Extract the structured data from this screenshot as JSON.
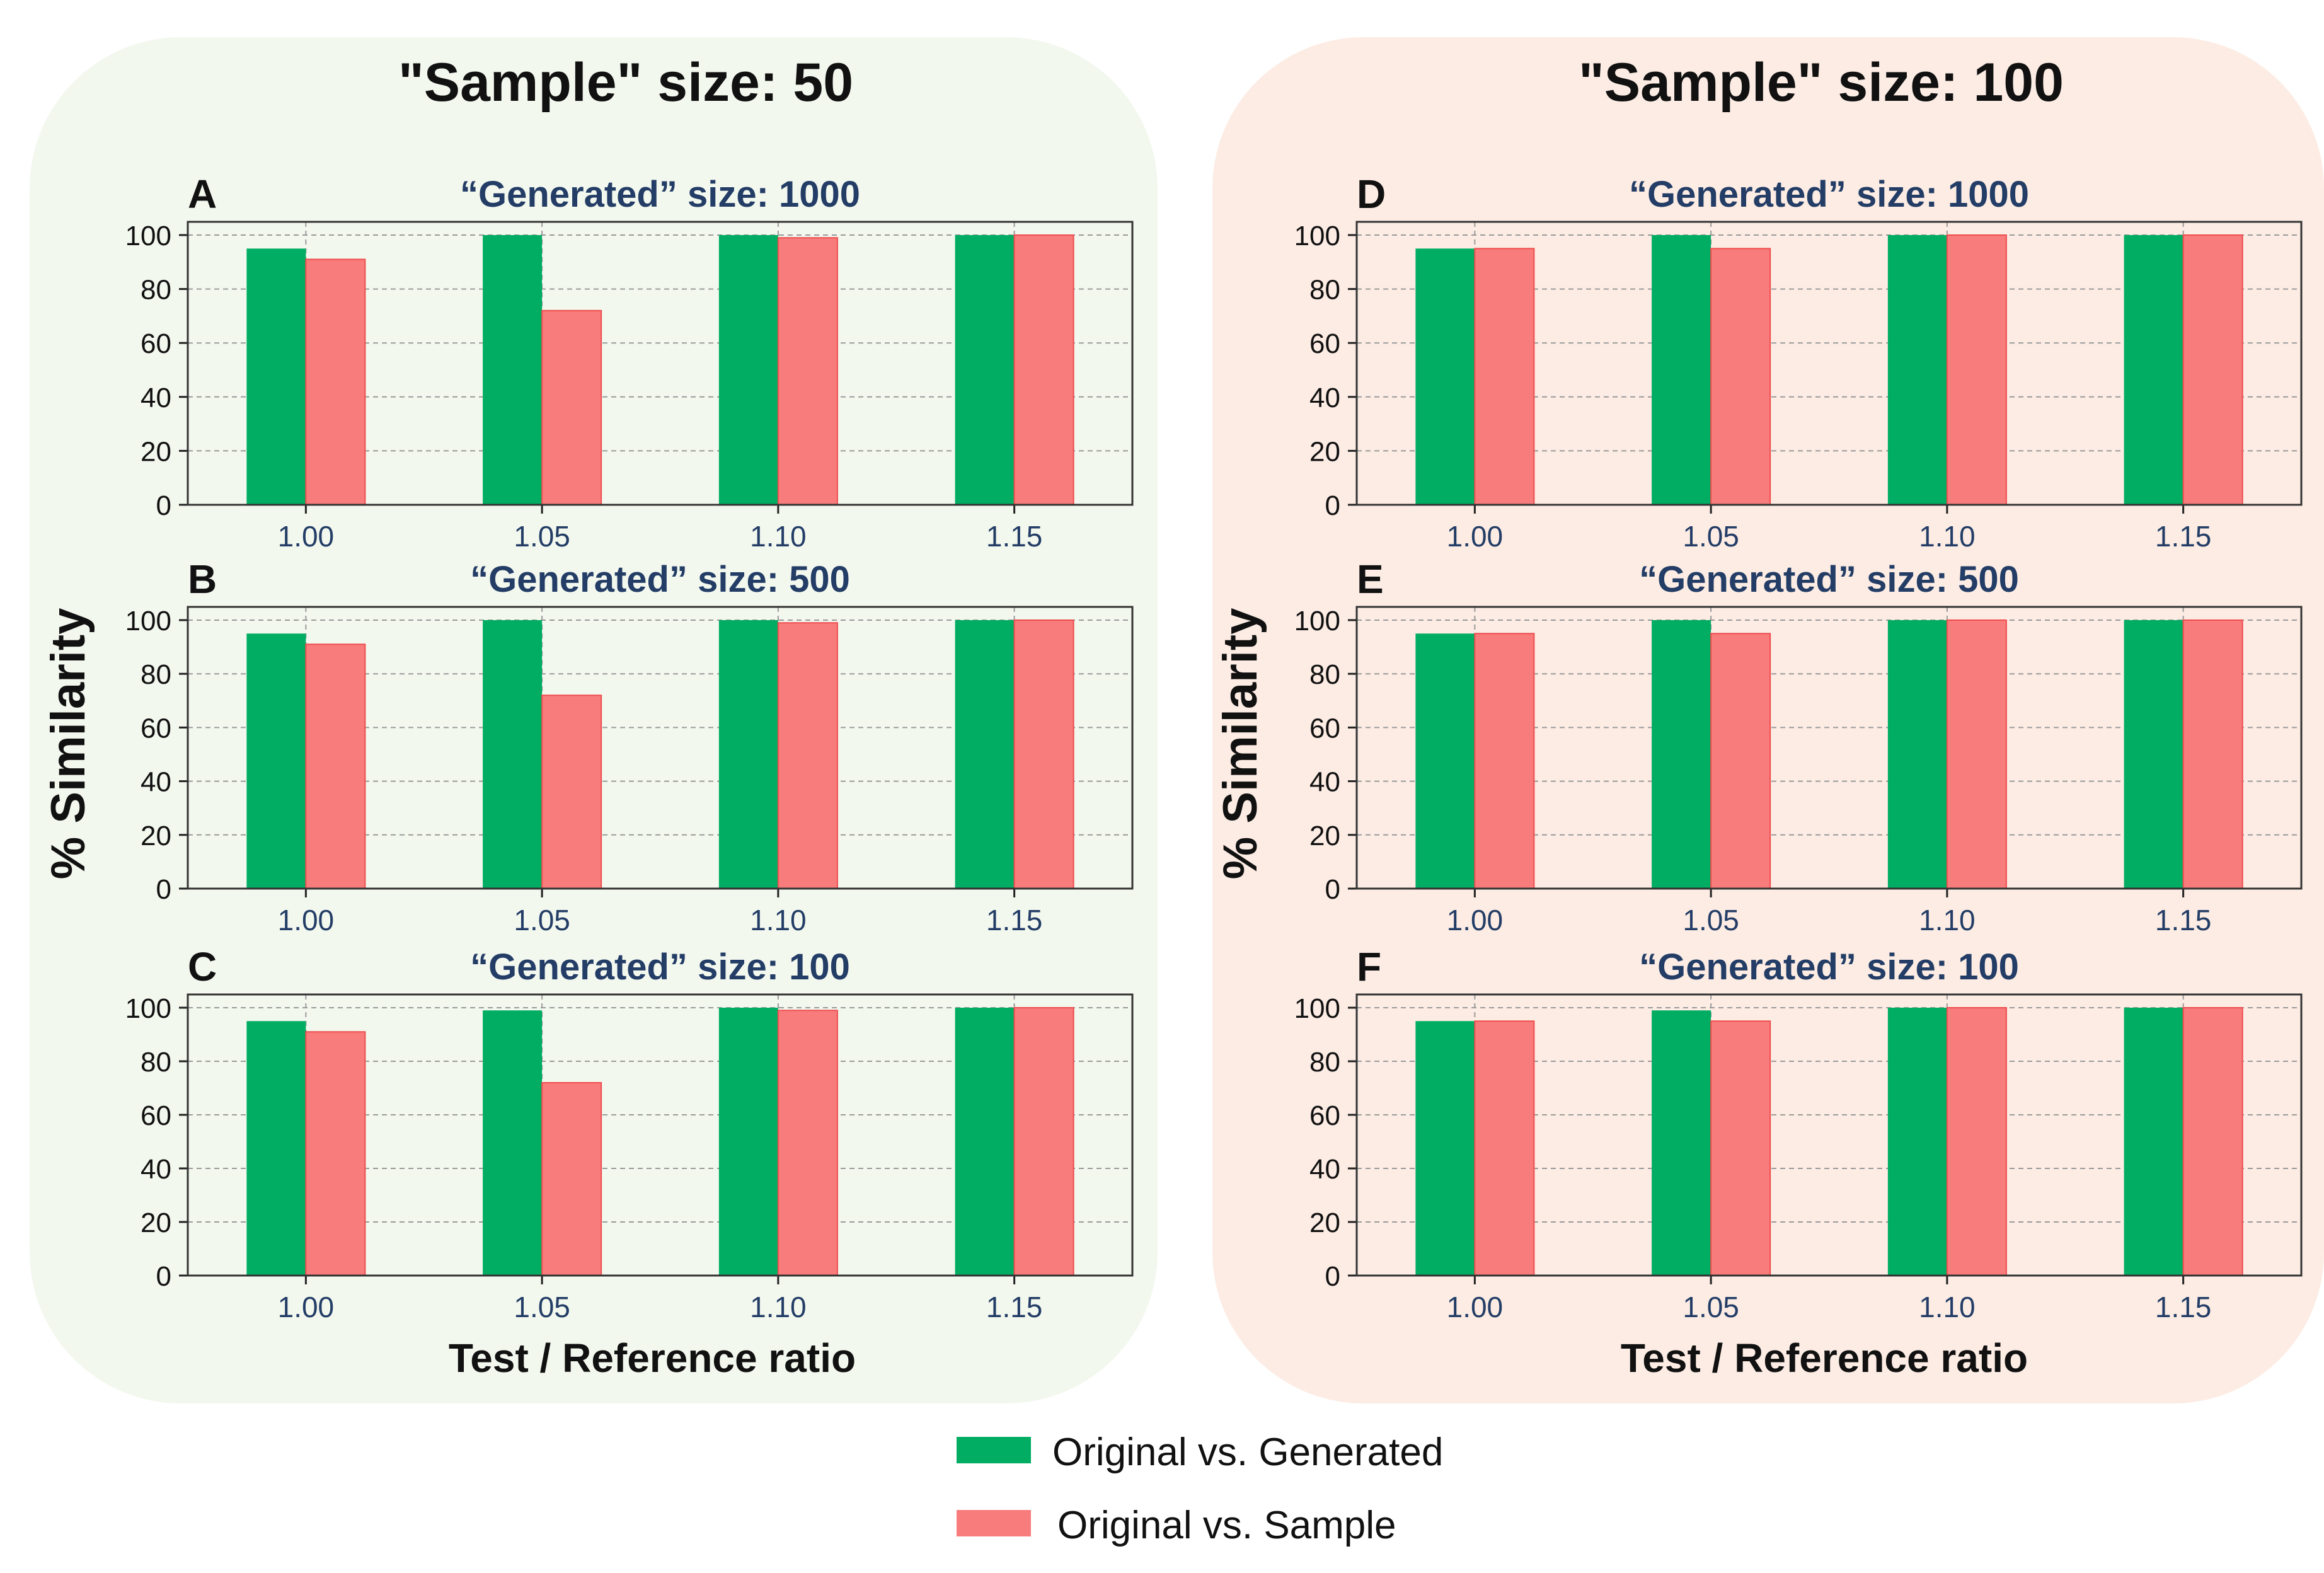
{
  "colors": {
    "generated": "#00ad62",
    "sample": "#f87c7c",
    "sample_edge": "#ee4d4d",
    "panel_title": "#233d66",
    "tick_label": "#233d66"
  },
  "left_group": {
    "title": "\"Sample\" size: 50",
    "ylabel": "% Similarity",
    "xlabel": "Test / Reference ratio"
  },
  "right_group": {
    "title": "\"Sample\" size: 100",
    "ylabel": "% Similarity",
    "xlabel": "Test / Reference ratio"
  },
  "legend": [
    {
      "label": "Original vs. Generated",
      "color": "#00ad62"
    },
    {
      "label": "Original vs. Sample",
      "color": "#f87c7c"
    }
  ],
  "chart_data": [
    {
      "letter": "A",
      "type": "bar",
      "title": "“Generated” size: 1000",
      "categories": [
        "1.00",
        "1.05",
        "1.10",
        "1.15"
      ],
      "ylim": [
        0,
        100
      ],
      "yticks": [
        "0",
        "20",
        "40",
        "60",
        "80",
        "100"
      ],
      "grid": true,
      "series": [
        {
          "name": "Original vs. Generated",
          "values": [
            95,
            100,
            100,
            100
          ]
        },
        {
          "name": "Original vs. Sample",
          "values": [
            91,
            72,
            99,
            100
          ]
        }
      ]
    },
    {
      "letter": "B",
      "type": "bar",
      "title": "“Generated” size: 500",
      "categories": [
        "1.00",
        "1.05",
        "1.10",
        "1.15"
      ],
      "ylim": [
        0,
        100
      ],
      "yticks": [
        "0",
        "20",
        "40",
        "60",
        "80",
        "100"
      ],
      "grid": true,
      "series": [
        {
          "name": "Original vs. Generated",
          "values": [
            95,
            100,
            100,
            100
          ]
        },
        {
          "name": "Original vs. Sample",
          "values": [
            91,
            72,
            99,
            100
          ]
        }
      ]
    },
    {
      "letter": "C",
      "type": "bar",
      "title": "“Generated” size: 100",
      "categories": [
        "1.00",
        "1.05",
        "1.10",
        "1.15"
      ],
      "ylim": [
        0,
        100
      ],
      "yticks": [
        "0",
        "20",
        "40",
        "60",
        "80",
        "100"
      ],
      "grid": true,
      "series": [
        {
          "name": "Original vs. Generated",
          "values": [
            95,
            99,
            100,
            100
          ]
        },
        {
          "name": "Original vs. Sample",
          "values": [
            91,
            72,
            99,
            100
          ]
        }
      ]
    },
    {
      "letter": "D",
      "type": "bar",
      "title": "“Generated” size: 1000",
      "categories": [
        "1.00",
        "1.05",
        "1.10",
        "1.15"
      ],
      "ylim": [
        0,
        100
      ],
      "yticks": [
        "0",
        "20",
        "40",
        "60",
        "80",
        "100"
      ],
      "grid": true,
      "series": [
        {
          "name": "Original vs. Generated",
          "values": [
            95,
            100,
            100,
            100
          ]
        },
        {
          "name": "Original vs. Sample",
          "values": [
            95,
            95,
            100,
            100
          ]
        }
      ]
    },
    {
      "letter": "E",
      "type": "bar",
      "title": "“Generated” size: 500",
      "categories": [
        "1.00",
        "1.05",
        "1.10",
        "1.15"
      ],
      "ylim": [
        0,
        100
      ],
      "yticks": [
        "0",
        "20",
        "40",
        "60",
        "80",
        "100"
      ],
      "grid": true,
      "series": [
        {
          "name": "Original vs. Generated",
          "values": [
            95,
            100,
            100,
            100
          ]
        },
        {
          "name": "Original vs. Sample",
          "values": [
            95,
            95,
            100,
            100
          ]
        }
      ]
    },
    {
      "letter": "F",
      "type": "bar",
      "title": "“Generated” size: 100",
      "categories": [
        "1.00",
        "1.05",
        "1.10",
        "1.15"
      ],
      "ylim": [
        0,
        100
      ],
      "yticks": [
        "0",
        "20",
        "40",
        "60",
        "80",
        "100"
      ],
      "grid": true,
      "series": [
        {
          "name": "Original vs. Generated",
          "values": [
            95,
            99,
            100,
            100
          ]
        },
        {
          "name": "Original vs. Sample",
          "values": [
            95,
            95,
            100,
            100
          ]
        }
      ]
    }
  ]
}
